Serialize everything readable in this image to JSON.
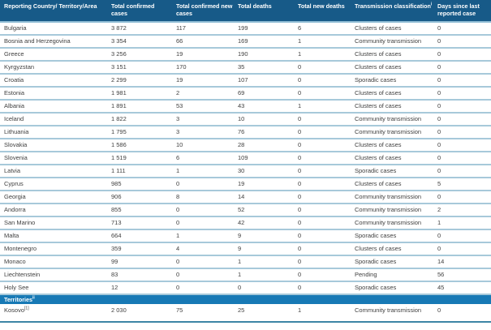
{
  "colors": {
    "header_bg": "#175a88",
    "header_text": "#ffffff",
    "section_band_bg": "#1779b5",
    "row_divider": "#a7c9da",
    "header_divider": "#8fbcd4",
    "table_bottom_border": "#3d85a5",
    "body_text": "#3f3f3f"
  },
  "table": {
    "columns": [
      {
        "label": "Reporting Country/ Territory/Area",
        "sup": ""
      },
      {
        "label": "Total confirmed cases",
        "sup": ""
      },
      {
        "label": "Total confirmed new cases",
        "sup": ""
      },
      {
        "label": "Total deaths",
        "sup": ""
      },
      {
        "label": "Total new deaths",
        "sup": ""
      },
      {
        "label": "Transmission classification",
        "sup": "i"
      },
      {
        "label": "Days since last reported case",
        "sup": ""
      }
    ],
    "rows": [
      {
        "country": "Bulgaria",
        "country_sup": "",
        "total_confirmed_cases": "3 872",
        "total_confirmed_new_cases": "117",
        "total_deaths": "199",
        "total_new_deaths": "6",
        "transmission_classification": "Clusters of cases",
        "days_since_last_reported_case": "0"
      },
      {
        "country": "Bosnia and Herzegovina",
        "country_sup": "",
        "total_confirmed_cases": "3 354",
        "total_confirmed_new_cases": "66",
        "total_deaths": "169",
        "total_new_deaths": "1",
        "transmission_classification": "Community transmission",
        "days_since_last_reported_case": "0"
      },
      {
        "country": "Greece",
        "country_sup": "",
        "total_confirmed_cases": "3 256",
        "total_confirmed_new_cases": "19",
        "total_deaths": "190",
        "total_new_deaths": "1",
        "transmission_classification": "Clusters of cases",
        "days_since_last_reported_case": "0"
      },
      {
        "country": "Kyrgyzstan",
        "country_sup": "",
        "total_confirmed_cases": "3 151",
        "total_confirmed_new_cases": "170",
        "total_deaths": "35",
        "total_new_deaths": "0",
        "transmission_classification": "Clusters of cases",
        "days_since_last_reported_case": "0"
      },
      {
        "country": "Croatia",
        "country_sup": "",
        "total_confirmed_cases": "2 299",
        "total_confirmed_new_cases": "19",
        "total_deaths": "107",
        "total_new_deaths": "0",
        "transmission_classification": "Sporadic cases",
        "days_since_last_reported_case": "0"
      },
      {
        "country": "Estonia",
        "country_sup": "",
        "total_confirmed_cases": "1 981",
        "total_confirmed_new_cases": "2",
        "total_deaths": "69",
        "total_new_deaths": "0",
        "transmission_classification": "Clusters of cases",
        "days_since_last_reported_case": "0"
      },
      {
        "country": "Albania",
        "country_sup": "",
        "total_confirmed_cases": "1 891",
        "total_confirmed_new_cases": "53",
        "total_deaths": "43",
        "total_new_deaths": "1",
        "transmission_classification": "Clusters of cases",
        "days_since_last_reported_case": "0"
      },
      {
        "country": "Iceland",
        "country_sup": "",
        "total_confirmed_cases": "1 822",
        "total_confirmed_new_cases": "3",
        "total_deaths": "10",
        "total_new_deaths": "0",
        "transmission_classification": "Community transmission",
        "days_since_last_reported_case": "0"
      },
      {
        "country": "Lithuania",
        "country_sup": "",
        "total_confirmed_cases": "1 795",
        "total_confirmed_new_cases": "3",
        "total_deaths": "76",
        "total_new_deaths": "0",
        "transmission_classification": "Community transmission",
        "days_since_last_reported_case": "0"
      },
      {
        "country": "Slovakia",
        "country_sup": "",
        "total_confirmed_cases": "1 586",
        "total_confirmed_new_cases": "10",
        "total_deaths": "28",
        "total_new_deaths": "0",
        "transmission_classification": "Clusters of cases",
        "days_since_last_reported_case": "0"
      },
      {
        "country": "Slovenia",
        "country_sup": "",
        "total_confirmed_cases": "1 519",
        "total_confirmed_new_cases": "6",
        "total_deaths": "109",
        "total_new_deaths": "0",
        "transmission_classification": "Clusters of cases",
        "days_since_last_reported_case": "0"
      },
      {
        "country": "Latvia",
        "country_sup": "",
        "total_confirmed_cases": "1 111",
        "total_confirmed_new_cases": "1",
        "total_deaths": "30",
        "total_new_deaths": "0",
        "transmission_classification": "Sporadic cases",
        "days_since_last_reported_case": "0"
      },
      {
        "country": "Cyprus",
        "country_sup": "",
        "total_confirmed_cases": "985",
        "total_confirmed_new_cases": "0",
        "total_deaths": "19",
        "total_new_deaths": "0",
        "transmission_classification": "Clusters of cases",
        "days_since_last_reported_case": "5"
      },
      {
        "country": "Georgia",
        "country_sup": "",
        "total_confirmed_cases": "906",
        "total_confirmed_new_cases": "8",
        "total_deaths": "14",
        "total_new_deaths": "0",
        "transmission_classification": "Community transmission",
        "days_since_last_reported_case": "0"
      },
      {
        "country": "Andorra",
        "country_sup": "",
        "total_confirmed_cases": "855",
        "total_confirmed_new_cases": "0",
        "total_deaths": "52",
        "total_new_deaths": "0",
        "transmission_classification": "Community transmission",
        "days_since_last_reported_case": "2"
      },
      {
        "country": "San Marino",
        "country_sup": "",
        "total_confirmed_cases": "713",
        "total_confirmed_new_cases": "0",
        "total_deaths": "42",
        "total_new_deaths": "0",
        "transmission_classification": "Community transmission",
        "days_since_last_reported_case": "1"
      },
      {
        "country": "Malta",
        "country_sup": "",
        "total_confirmed_cases": "664",
        "total_confirmed_new_cases": "1",
        "total_deaths": "9",
        "total_new_deaths": "0",
        "transmission_classification": "Sporadic cases",
        "days_since_last_reported_case": "0"
      },
      {
        "country": "Montenegro",
        "country_sup": "",
        "total_confirmed_cases": "359",
        "total_confirmed_new_cases": "4",
        "total_deaths": "9",
        "total_new_deaths": "0",
        "transmission_classification": "Clusters of cases",
        "days_since_last_reported_case": "0"
      },
      {
        "country": "Monaco",
        "country_sup": "",
        "total_confirmed_cases": "99",
        "total_confirmed_new_cases": "0",
        "total_deaths": "1",
        "total_new_deaths": "0",
        "transmission_classification": "Sporadic cases",
        "days_since_last_reported_case": "14"
      },
      {
        "country": "Liechtenstein",
        "country_sup": "",
        "total_confirmed_cases": "83",
        "total_confirmed_new_cases": "0",
        "total_deaths": "1",
        "total_new_deaths": "0",
        "transmission_classification": "Pending",
        "days_since_last_reported_case": "56"
      },
      {
        "country": "Holy See",
        "country_sup": "",
        "total_confirmed_cases": "12",
        "total_confirmed_new_cases": "0",
        "total_deaths": "0",
        "total_new_deaths": "0",
        "transmission_classification": "Sporadic cases",
        "days_since_last_reported_case": "45"
      }
    ],
    "section": {
      "label": "Territories",
      "sup": "ii"
    },
    "territory_rows": [
      {
        "country": "Kosovo",
        "country_sup": "[1]",
        "total_confirmed_cases": "2 030",
        "total_confirmed_new_cases": "75",
        "total_deaths": "25",
        "total_new_deaths": "1",
        "transmission_classification": "Community transmission",
        "days_since_last_reported_case": "0"
      }
    ]
  }
}
